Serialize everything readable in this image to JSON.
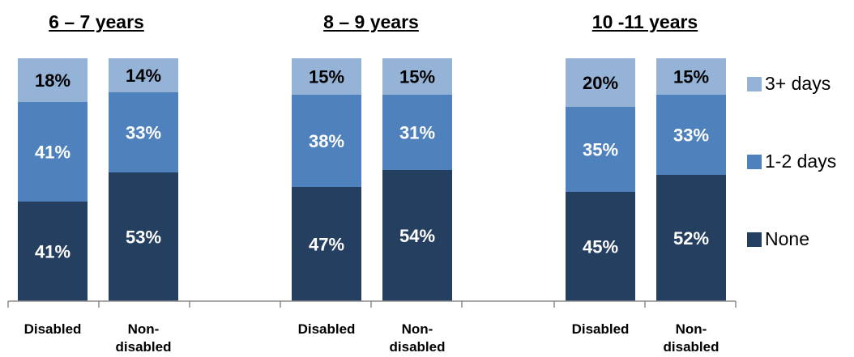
{
  "chart_data": {
    "type": "bar",
    "stacked": true,
    "groups": [
      "6 – 7 years",
      "8 – 9 years",
      "10 -11 years"
    ],
    "categories": [
      "Disabled",
      "Non-\ndisabled"
    ],
    "series": [
      {
        "name": "None",
        "color": "#243f60",
        "values": [
          [
            41,
            53
          ],
          [
            47,
            54
          ],
          [
            45,
            52
          ]
        ]
      },
      {
        "name": "1-2 days",
        "color": "#4f81bd",
        "values": [
          [
            41,
            33
          ],
          [
            38,
            31
          ],
          [
            35,
            33
          ]
        ]
      },
      {
        "name": "3+ days",
        "color": "#95b3d7",
        "values": [
          [
            18,
            14
          ],
          [
            15,
            15
          ],
          [
            20,
            15
          ]
        ]
      }
    ],
    "data_labels": [
      [
        [
          "41%",
          "41%",
          "18%"
        ],
        [
          "53%",
          "33%",
          "14%"
        ]
      ],
      [
        [
          "47%",
          "38%",
          "15%"
        ],
        [
          "54%",
          "31%",
          "15%"
        ]
      ],
      [
        [
          "45%",
          "35%",
          "20%"
        ],
        [
          "52%",
          "33%",
          "15%"
        ]
      ]
    ],
    "ylim": [
      0,
      100
    ],
    "legend_position": "right",
    "grid": false
  }
}
